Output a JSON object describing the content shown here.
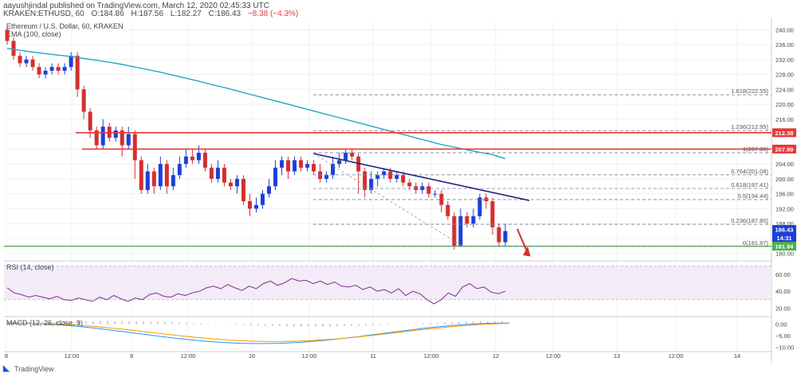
{
  "header": {
    "publisher": "aayushjindal published on TradingView.com, March 12, 2020 02:45:33 UTC",
    "symbol": "KRAKEN:ETHUSD, 60",
    "open": "O:184.86",
    "high": "H:187.56",
    "low": "L:182.27",
    "close": "C:186.43",
    "change": "−8.38 (−4.3%)"
  },
  "footer": {
    "brand": "TradingView"
  },
  "colors": {
    "up": "#1e3fd8",
    "down": "#d32f2f",
    "ema": "#1ea8c8",
    "trend": "#1a237e",
    "hline": "#e53935",
    "support": "#4caf50",
    "fib": "#7a7fa0",
    "rsi": "#7b2d8b",
    "macd": "#2196f3",
    "signal": "#ff9800"
  },
  "chart_data": [
    {
      "type": "candlestick",
      "title": "Ethereum / U.S. Dollar, 60, KRAKEN",
      "indicator": "EMA (100, close)",
      "ylim": [
        178,
        242
      ],
      "yticks": [
        "240.00",
        "236.00",
        "232.00",
        "228.00",
        "224.00",
        "220.00",
        "216.00",
        "212.00",
        "208.00",
        "204.00",
        "200.00",
        "196.00",
        "192.00",
        "188.00",
        "184.00",
        "180.00"
      ],
      "xticks": [
        "8",
        "12:00",
        "9",
        "12:00",
        "10",
        "12:00",
        "11",
        "12:00",
        "12",
        "12:00",
        "13",
        "12:00",
        "14"
      ],
      "candles": [
        [
          240,
          237,
          241,
          236
        ],
        [
          237,
          233,
          238,
          232
        ],
        [
          233,
          231,
          234,
          230
        ],
        [
          231,
          232,
          233,
          230
        ],
        [
          232,
          230,
          233,
          229
        ],
        [
          230,
          228,
          231,
          227
        ],
        [
          228,
          229,
          230,
          227
        ],
        [
          229,
          230,
          231,
          228
        ],
        [
          230,
          229,
          231,
          228
        ],
        [
          229,
          230,
          231,
          228
        ],
        [
          230,
          233,
          234,
          229
        ],
        [
          233,
          224,
          234,
          222
        ],
        [
          224,
          218,
          225,
          216
        ],
        [
          218,
          213,
          219,
          211
        ],
        [
          213,
          209,
          214,
          208
        ],
        [
          209,
          214,
          216,
          208
        ],
        [
          214,
          211,
          215,
          210
        ],
        [
          211,
          213,
          214,
          210
        ],
        [
          213,
          209,
          214,
          206
        ],
        [
          209,
          212,
          214,
          208
        ],
        [
          212,
          205,
          213,
          200
        ],
        [
          205,
          197,
          206,
          196
        ],
        [
          197,
          202,
          204,
          196
        ],
        [
          202,
          198,
          203,
          196
        ],
        [
          198,
          204,
          206,
          197
        ],
        [
          204,
          198,
          205,
          196
        ],
        [
          198,
          201,
          203,
          197
        ],
        [
          201,
          204,
          206,
          200
        ],
        [
          204,
          206,
          208,
          203
        ],
        [
          206,
          205,
          208,
          204
        ],
        [
          205,
          207,
          209,
          204
        ],
        [
          207,
          203,
          208,
          202
        ],
        [
          203,
          200,
          204,
          199
        ],
        [
          200,
          203,
          205,
          199
        ],
        [
          203,
          199,
          204,
          198
        ],
        [
          199,
          198,
          200,
          197
        ],
        [
          198,
          200,
          201,
          196
        ],
        [
          200,
          194,
          201,
          193
        ],
        [
          194,
          192,
          196,
          190
        ],
        [
          192,
          193,
          195,
          191
        ],
        [
          193,
          196,
          197,
          192
        ],
        [
          196,
          198,
          200,
          195
        ],
        [
          198,
          203,
          205,
          197
        ],
        [
          203,
          205,
          206,
          201
        ],
        [
          205,
          202,
          206,
          200
        ],
        [
          202,
          205,
          206,
          201
        ],
        [
          205,
          203,
          206,
          202
        ],
        [
          203,
          204,
          205,
          202
        ],
        [
          204,
          202,
          205,
          201
        ],
        [
          202,
          200,
          204,
          199
        ],
        [
          200,
          201,
          202,
          199
        ],
        [
          201,
          204,
          206,
          200
        ],
        [
          204,
          205,
          207,
          203
        ],
        [
          205,
          207,
          208,
          204
        ],
        [
          207,
          206,
          208,
          205
        ],
        [
          206,
          202,
          207,
          196
        ],
        [
          202,
          197,
          203,
          195
        ],
        [
          197,
          200,
          202,
          196
        ],
        [
          200,
          201,
          202,
          198
        ],
        [
          201,
          202,
          203,
          200
        ],
        [
          202,
          200,
          203,
          199
        ],
        [
          200,
          201,
          202,
          199
        ],
        [
          201,
          199,
          202,
          198
        ],
        [
          199,
          198,
          200,
          197
        ],
        [
          198,
          197,
          199,
          196
        ],
        [
          197,
          198,
          199,
          196
        ],
        [
          198,
          196,
          199,
          195
        ],
        [
          196,
          196,
          197,
          195
        ],
        [
          196,
          193,
          197,
          191
        ],
        [
          193,
          190,
          194,
          189
        ],
        [
          190,
          182,
          191,
          181
        ],
        [
          182,
          190,
          192,
          182
        ],
        [
          190,
          188,
          191,
          187
        ],
        [
          188,
          190,
          192,
          187
        ],
        [
          190,
          195,
          196,
          189
        ],
        [
          195,
          194,
          196,
          192
        ],
        [
          194,
          187,
          195,
          185
        ],
        [
          187,
          183,
          188,
          182
        ],
        [
          183,
          186,
          188,
          182
        ]
      ],
      "ema": [
        235,
        234.5,
        234,
        233.6,
        233.2,
        232.8,
        232.3,
        231.8,
        231.3,
        230.7,
        230,
        229.3,
        228.6,
        227.8,
        227,
        226.2,
        225.3,
        224.5,
        223.6,
        222.7,
        221.8,
        220.9,
        220,
        219.1,
        218.2,
        217.3,
        216.4,
        215.5,
        214.6,
        213.7,
        212.8,
        211.9,
        211,
        210.1,
        209.2,
        208.5,
        207.8,
        207.1,
        206.5,
        205.4
      ],
      "ema_start": 0,
      "ema_end": 78,
      "levels": {
        "resistance1": 212.38,
        "resistance2": 207.99,
        "support": 181.94,
        "fib": [
          {
            "label": "1.618(222.55)",
            "value": 222.55
          },
          {
            "label": "1.236(212.95)",
            "value": 212.95
          },
          {
            "label": "1(207.00)",
            "value": 207.0
          },
          {
            "label": "0.764(201.08)",
            "value": 201.08
          },
          {
            "label": "0.618(197.41)",
            "value": 197.41
          },
          {
            "label": "0.5(194.44)",
            "value": 194.44
          },
          {
            "label": "0.236(187.80)",
            "value": 187.8
          },
          {
            "label": "0(181.87)",
            "value": 181.87
          }
        ]
      },
      "price_tags": [
        {
          "label": "212.38",
          "value": 212.38,
          "color": "#e53935"
        },
        {
          "label": "207.99",
          "value": 207.99,
          "color": "#e53935"
        },
        {
          "label": "186.43",
          "value": 186.43,
          "color": "#1e3fd8"
        },
        {
          "label": "14:31",
          "value": 184.2,
          "color": "#1e3fd8"
        },
        {
          "label": "181.94",
          "value": 181.94,
          "color": "#4caf50"
        }
      ]
    },
    {
      "type": "line",
      "title": "RSI (14, close)",
      "ylim": [
        10,
        75
      ],
      "yticks": [
        "60.00",
        "40.00",
        "20.00"
      ],
      "values": [
        44,
        38,
        36,
        33,
        35,
        33,
        31,
        34,
        30,
        29,
        32,
        30,
        28,
        33,
        30,
        35,
        31,
        28,
        32,
        30,
        36,
        38,
        34,
        33,
        37,
        35,
        38,
        40,
        44,
        46,
        43,
        48,
        44,
        41,
        46,
        43,
        49,
        52,
        47,
        50,
        55,
        52,
        53,
        49,
        52,
        48,
        51,
        46,
        45,
        47,
        42,
        45,
        40,
        42,
        38,
        43,
        35,
        40,
        37,
        30,
        25,
        30,
        38,
        34,
        45,
        49,
        43,
        45,
        39,
        37,
        40
      ]
    },
    {
      "type": "line",
      "title": "MACD (12, 26, close, 9)",
      "ylim": [
        -12,
        3
      ],
      "yticks": [
        "0.00",
        "−5.00",
        "−10.00"
      ]
    }
  ]
}
